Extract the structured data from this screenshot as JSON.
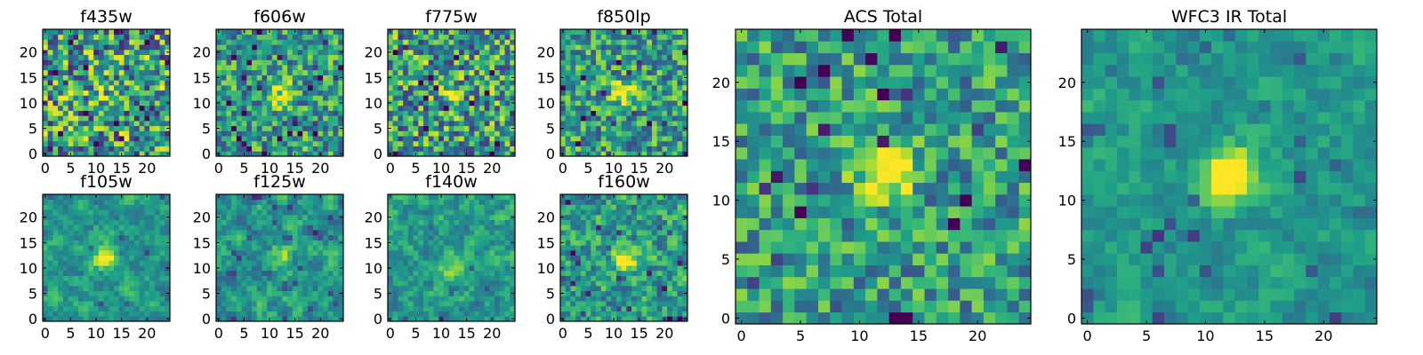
{
  "chart_data": [
    {
      "type": "heatmap",
      "title": "f435w",
      "xlim": [
        0,
        25
      ],
      "ylim": [
        0,
        25
      ],
      "xticks": [
        0,
        5,
        10,
        15,
        20
      ],
      "yticks": [
        0,
        5,
        10,
        15,
        20
      ],
      "colormap": "viridis",
      "peak": [
        12,
        13
      ],
      "peak_strength": 0.15,
      "noise": 0.55,
      "smooth": 0,
      "seed": 11
    },
    {
      "type": "heatmap",
      "title": "f606w",
      "xlim": [
        0,
        25
      ],
      "ylim": [
        0,
        25
      ],
      "xticks": [
        0,
        5,
        10,
        15,
        20
      ],
      "yticks": [
        0,
        5,
        10,
        15,
        20
      ],
      "colormap": "viridis",
      "peak": [
        12,
        12
      ],
      "peak_strength": 0.55,
      "noise": 0.4,
      "smooth": 0,
      "seed": 23
    },
    {
      "type": "heatmap",
      "title": "f775w",
      "xlim": [
        0,
        25
      ],
      "ylim": [
        0,
        25
      ],
      "xticks": [
        0,
        5,
        10,
        15,
        20
      ],
      "yticks": [
        0,
        5,
        10,
        15,
        20
      ],
      "colormap": "viridis",
      "peak": [
        12,
        12
      ],
      "peak_strength": 0.35,
      "noise": 0.5,
      "smooth": 0,
      "seed": 37
    },
    {
      "type": "heatmap",
      "title": "f850lp",
      "xlim": [
        0,
        25
      ],
      "ylim": [
        0,
        25
      ],
      "xticks": [
        0,
        5,
        10,
        15,
        20
      ],
      "yticks": [
        0,
        5,
        10,
        15,
        20
      ],
      "colormap": "viridis",
      "peak": [
        12,
        12
      ],
      "peak_strength": 0.55,
      "noise": 0.4,
      "smooth": 0,
      "seed": 41
    },
    {
      "type": "heatmap",
      "title": "f105w",
      "xlim": [
        0,
        25
      ],
      "ylim": [
        0,
        25
      ],
      "xticks": [
        0,
        5,
        10,
        15,
        20
      ],
      "yticks": [
        0,
        5,
        10,
        15,
        20
      ],
      "colormap": "viridis",
      "peak": [
        12,
        12
      ],
      "peak_strength": 0.55,
      "noise": 0.35,
      "smooth": 0.6,
      "seed": 53
    },
    {
      "type": "heatmap",
      "title": "f125w",
      "xlim": [
        0,
        25
      ],
      "ylim": [
        0,
        25
      ],
      "xticks": [
        0,
        5,
        10,
        15,
        20
      ],
      "yticks": [
        0,
        5,
        10,
        15,
        20
      ],
      "colormap": "viridis",
      "peak": [
        12,
        12
      ],
      "peak_strength": 0.3,
      "noise": 0.4,
      "smooth": 0.6,
      "seed": 67
    },
    {
      "type": "heatmap",
      "title": "f140w",
      "xlim": [
        0,
        25
      ],
      "ylim": [
        0,
        25
      ],
      "xticks": [
        0,
        5,
        10,
        15,
        20
      ],
      "yticks": [
        0,
        5,
        10,
        15,
        20
      ],
      "colormap": "viridis",
      "peak": [
        12,
        10
      ],
      "peak_strength": 0.4,
      "noise": 0.4,
      "smooth": 0.6,
      "seed": 79
    },
    {
      "type": "heatmap",
      "title": "f160w",
      "xlim": [
        0,
        25
      ],
      "ylim": [
        0,
        25
      ],
      "xticks": [
        0,
        5,
        10,
        15,
        20
      ],
      "yticks": [
        0,
        5,
        10,
        15,
        20
      ],
      "colormap": "viridis",
      "peak": [
        12,
        12
      ],
      "peak_strength": 0.6,
      "noise": 0.4,
      "smooth": 0.3,
      "seed": 83
    },
    {
      "type": "heatmap",
      "title": "ACS Total",
      "xlim": [
        0,
        25
      ],
      "ylim": [
        0,
        25
      ],
      "xticks": [
        0,
        5,
        10,
        15,
        20
      ],
      "yticks": [
        0,
        5,
        10,
        15,
        20
      ],
      "colormap": "viridis",
      "peak": [
        12,
        12
      ],
      "peak_strength": 0.65,
      "noise": 0.35,
      "smooth": 0,
      "seed": 97
    },
    {
      "type": "heatmap",
      "title": "WFC3 IR Total",
      "xlim": [
        0,
        25
      ],
      "ylim": [
        0,
        25
      ],
      "xticks": [
        0,
        5,
        10,
        15,
        20
      ],
      "yticks": [
        0,
        5,
        10,
        15,
        20
      ],
      "colormap": "viridis",
      "peak": [
        12,
        12
      ],
      "peak_strength": 0.7,
      "noise": 0.25,
      "smooth": 0.5,
      "seed": 101
    }
  ]
}
